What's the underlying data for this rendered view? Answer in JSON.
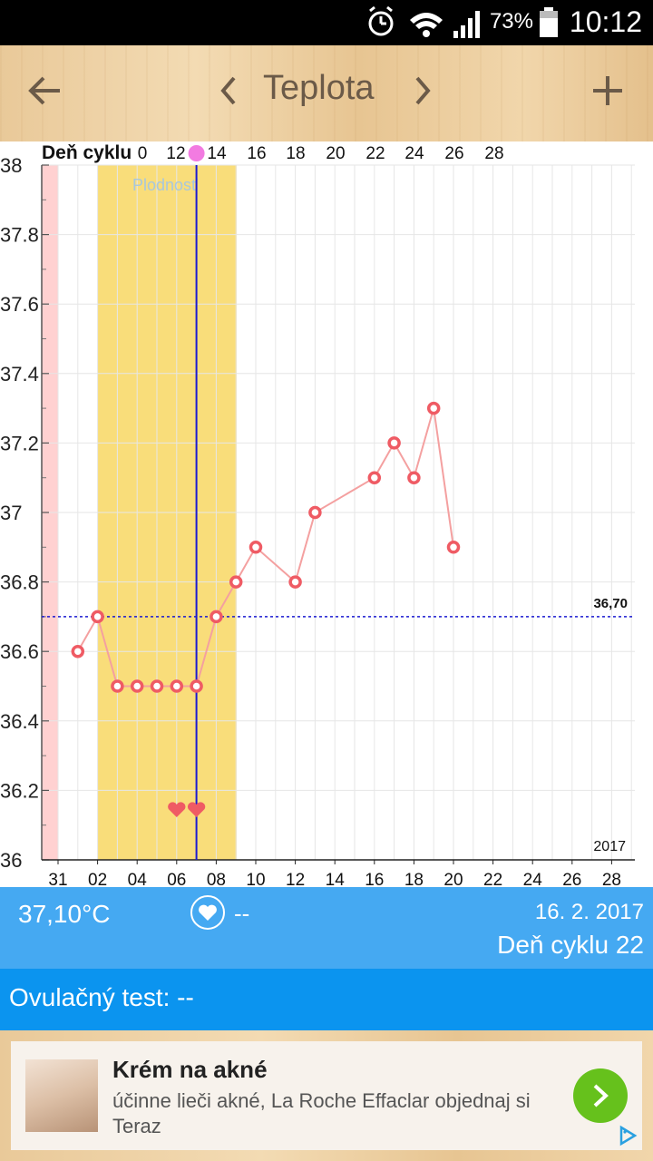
{
  "status_bar": {
    "battery": "73%",
    "time": "10:12"
  },
  "toolbar": {
    "title": "Teplota",
    "back_icon": "arrow-left-icon",
    "prev_icon": "chevron-left-icon",
    "next_icon": "chevron-right-icon",
    "add_icon": "plus-icon"
  },
  "chart_data": {
    "type": "line",
    "top_axis_label": "Deň cyklu",
    "top_ticks": [
      "0",
      "12",
      "14",
      "16",
      "18",
      "20",
      "22",
      "24",
      "26",
      "28"
    ],
    "bottom_ticks": [
      "31",
      "02",
      "04",
      "06",
      "08",
      "10",
      "12",
      "14",
      "16",
      "18",
      "20",
      "22",
      "24",
      "26",
      "28"
    ],
    "y_ticks": [
      "38",
      "37.8",
      "37.6",
      "37.4",
      "37.2",
      "37",
      "36.8",
      "36.6",
      "36.4",
      "36.2",
      "36"
    ],
    "ylim": [
      36,
      38
    ],
    "fertility_label": "Plodnosť",
    "coverline_label": "36,70",
    "coverline_value": 36.7,
    "year_label": "2017",
    "points": [
      {
        "day": 1,
        "value": 36.6
      },
      {
        "day": 2,
        "value": 36.7
      },
      {
        "day": 3,
        "value": 36.5
      },
      {
        "day": 4,
        "value": 36.5
      },
      {
        "day": 5,
        "value": 36.5
      },
      {
        "day": 6,
        "value": 36.5
      },
      {
        "day": 7,
        "value": 36.5
      },
      {
        "day": 8,
        "value": 36.7
      },
      {
        "day": 9,
        "value": 36.8
      },
      {
        "day": 10,
        "value": 36.9
      },
      {
        "day": 12,
        "value": 36.8
      },
      {
        "day": 13,
        "value": 37.0
      },
      {
        "day": 16,
        "value": 37.1
      },
      {
        "day": 17,
        "value": 37.2
      },
      {
        "day": 18,
        "value": 37.1
      },
      {
        "day": 19,
        "value": 37.3
      },
      {
        "day": 20,
        "value": 36.9
      }
    ],
    "colors": {
      "line": "#f4a0a0",
      "point": "#ef5b64",
      "fertile": "#f9dd7a",
      "period": "#ffd1d1",
      "ovulation_line": "#1a1ad1",
      "coverline": "#1a1ad1"
    }
  },
  "info": {
    "temperature": "37,10°C",
    "intercourse": "--",
    "date": "16. 2. 2017",
    "cycle_day": "Deň cyklu 22"
  },
  "ovulation_test": {
    "label": "Ovulačný test: --"
  },
  "ad": {
    "title": "Krém na akné",
    "description": "účinne lieči akné, La Roche Effaclar objednaj si Teraz"
  }
}
